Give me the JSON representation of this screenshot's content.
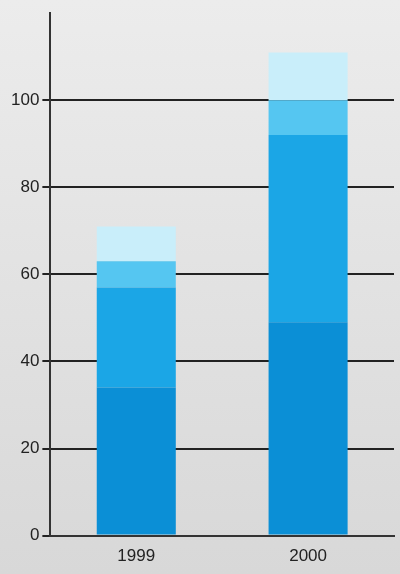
{
  "chart_data": {
    "type": "bar",
    "stacked": true,
    "categories": [
      "1999",
      "2000"
    ],
    "series": [
      {
        "color": "#0b8fd6",
        "values": [
          34,
          49
        ]
      },
      {
        "color": "#1ba6e6",
        "values": [
          23,
          43
        ]
      },
      {
        "color": "#55c6f1",
        "values": [
          6,
          8
        ]
      },
      {
        "color": "#c9eefa",
        "values": [
          8,
          11
        ]
      }
    ],
    "ylim": [
      0,
      120
    ],
    "yticks": [
      0,
      20,
      40,
      60,
      80,
      100
    ],
    "grid": true
  }
}
